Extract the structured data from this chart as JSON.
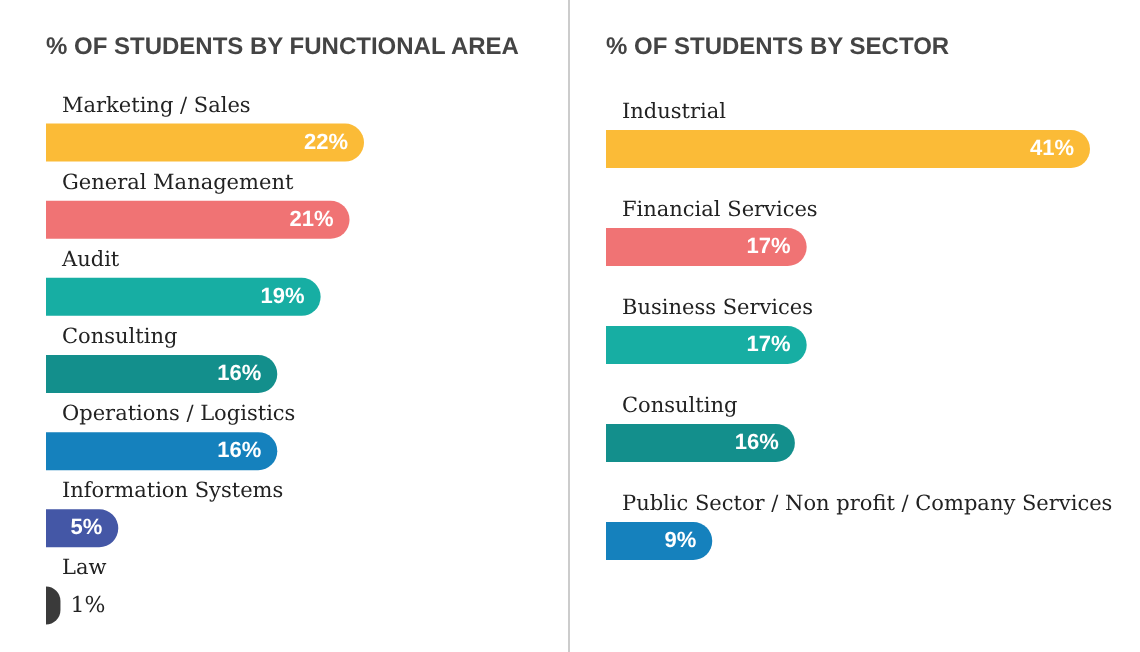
{
  "chart_data": [
    {
      "type": "bar",
      "orientation": "horizontal",
      "title": "% OF STUDENTS BY FUNCTIONAL AREA",
      "categories": [
        "Marketing / Sales",
        "General Management",
        "Audit",
        "Consulting",
        "Operations / Logistics",
        "Information Systems",
        "Law"
      ],
      "values": [
        22,
        21,
        19,
        16,
        16,
        5,
        1
      ],
      "value_labels": [
        "22%",
        "21%",
        "19%",
        "16%",
        "16%",
        "5%",
        "1%"
      ],
      "colors": [
        "#fbbb37",
        "#f07374",
        "#17aea3",
        "#138f8c",
        "#1581bd",
        "#4457a6",
        "#3a3a3a"
      ]
    },
    {
      "type": "bar",
      "orientation": "horizontal",
      "title": "% OF STUDENTS BY SECTOR",
      "categories": [
        "Industrial",
        "Financial Services",
        "Business Services",
        "Consulting",
        "Public Sector / Non profit / Company Services"
      ],
      "values": [
        41,
        17,
        17,
        16,
        9
      ],
      "value_labels": [
        "41%",
        "17%",
        "17%",
        "16%",
        "9%"
      ],
      "colors": [
        "#fbbb37",
        "#f07374",
        "#17aea3",
        "#138f8c",
        "#1581bd"
      ]
    }
  ]
}
